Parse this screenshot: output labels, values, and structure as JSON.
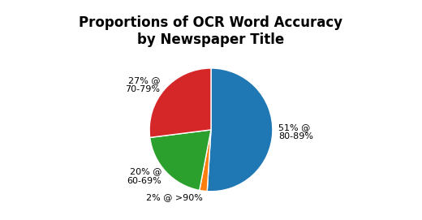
{
  "chart_data": {
    "type": "pie",
    "title": "Proportions of OCR Word Accuracy\nby Newspaper Title",
    "categories": [
      "51% @\n80-89%",
      "2% @ >90%",
      "20% @\n60-69%",
      "27% @\n70-79%"
    ],
    "values": [
      51,
      2,
      20,
      27
    ]
  }
}
